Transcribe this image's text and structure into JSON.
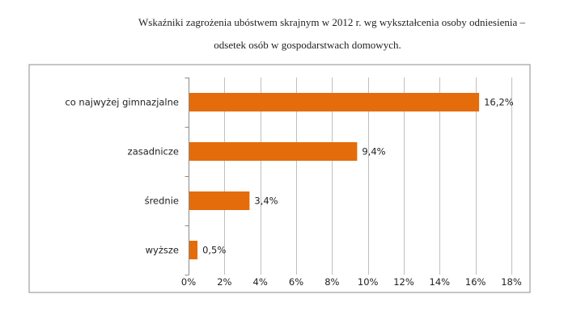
{
  "chart_data": {
    "type": "bar",
    "orientation": "horizontal",
    "title_line1": "Wskaźniki zagrożenia ubóstwem skrajnym w 2012 r. wg wykształcenia osoby odniesienia –",
    "title_line2": "odsetek osób w gospodarstwach domowych.",
    "categories": [
      "co najwyżej gimnazjalne",
      "zasadnicze",
      "średnie",
      "wyższe"
    ],
    "values": [
      16.2,
      9.4,
      3.4,
      0.5
    ],
    "data_labels": [
      "16,2%",
      "9,4%",
      "3,4%",
      "0,5%"
    ],
    "xlim": [
      0,
      18
    ],
    "xticks": [
      0,
      2,
      4,
      6,
      8,
      10,
      12,
      14,
      16,
      18
    ],
    "xtick_labels": [
      "0%",
      "2%",
      "4%",
      "6%",
      "8%",
      "10%",
      "12%",
      "14%",
      "16%",
      "18%"
    ],
    "grid": "vertical",
    "legend": "none",
    "bar_color": "#E46C0A"
  }
}
